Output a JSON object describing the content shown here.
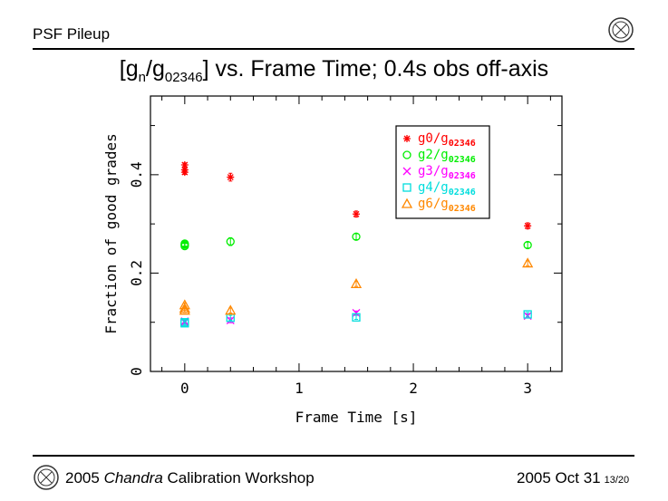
{
  "header": {
    "section": "PSF Pileup",
    "title_main": "[g",
    "title_sub_n": "n",
    "title_mid": "/g",
    "title_sub_ref": "02346",
    "title_tail": "] vs. Frame Time; 0.4s obs off-axis"
  },
  "footer": {
    "year": "2005",
    "mission": "Chandra",
    "event": "Calibration Workshop",
    "date": "2005 Oct 31",
    "page": "13/20"
  },
  "chart_data": {
    "type": "scatter",
    "xlabel": "Frame Time [s]",
    "ylabel": "Fraction of good grades",
    "xlim": [
      -0.3,
      3.3
    ],
    "ylim": [
      0,
      0.56
    ],
    "xticks": [
      0,
      1,
      2,
      3
    ],
    "yticks": [
      0,
      0.2,
      0.4
    ],
    "legend_position": "top-right",
    "series": [
      {
        "name": "g0/g",
        "name_sub": "02346",
        "marker": "asterisk",
        "color": "#ff0000",
        "points": [
          [
            0,
            0.42
          ],
          [
            0,
            0.41
          ],
          [
            0,
            0.405
          ],
          [
            0.4,
            0.395
          ],
          [
            1.5,
            0.32
          ],
          [
            3.0,
            0.296
          ]
        ],
        "yerr": [
          0.004,
          0.004,
          0.004,
          0.008,
          0.006,
          0.006
        ]
      },
      {
        "name": "g2/g",
        "name_sub": "02346",
        "marker": "circle",
        "color": "#00ee00",
        "points": [
          [
            0,
            0.258
          ],
          [
            0,
            0.26
          ],
          [
            0,
            0.255
          ],
          [
            0.4,
            0.264
          ],
          [
            1.5,
            0.274
          ],
          [
            3.0,
            0.257
          ]
        ],
        "yerr": [
          0.005,
          0.005,
          0.005,
          0.008,
          0.006,
          0.006
        ]
      },
      {
        "name": "g3/g",
        "name_sub": "02346",
        "marker": "x",
        "color": "#ff00ff",
        "points": [
          [
            0,
            0.102
          ],
          [
            0,
            0.1
          ],
          [
            0.4,
            0.104
          ],
          [
            1.5,
            0.119
          ],
          [
            3.0,
            0.113
          ]
        ],
        "yerr": [
          0.003,
          0.003,
          0.005,
          0.004,
          0.004
        ]
      },
      {
        "name": "g4/g",
        "name_sub": "02346",
        "marker": "square",
        "color": "#00dddd",
        "points": [
          [
            0,
            0.098
          ],
          [
            0,
            0.1
          ],
          [
            0.4,
            0.109
          ],
          [
            1.5,
            0.11
          ],
          [
            3.0,
            0.116
          ]
        ],
        "yerr": [
          0.003,
          0.003,
          0.005,
          0.004,
          0.004
        ]
      },
      {
        "name": "g6/g",
        "name_sub": "02346",
        "marker": "triangle",
        "color": "#ff8800",
        "points": [
          [
            0,
            0.135
          ],
          [
            0,
            0.128
          ],
          [
            0,
            0.124
          ],
          [
            0.4,
            0.124
          ],
          [
            1.5,
            0.178
          ],
          [
            3.0,
            0.22
          ]
        ],
        "yerr": [
          0.004,
          0.004,
          0.004,
          0.005,
          0.005,
          0.005
        ]
      }
    ]
  }
}
